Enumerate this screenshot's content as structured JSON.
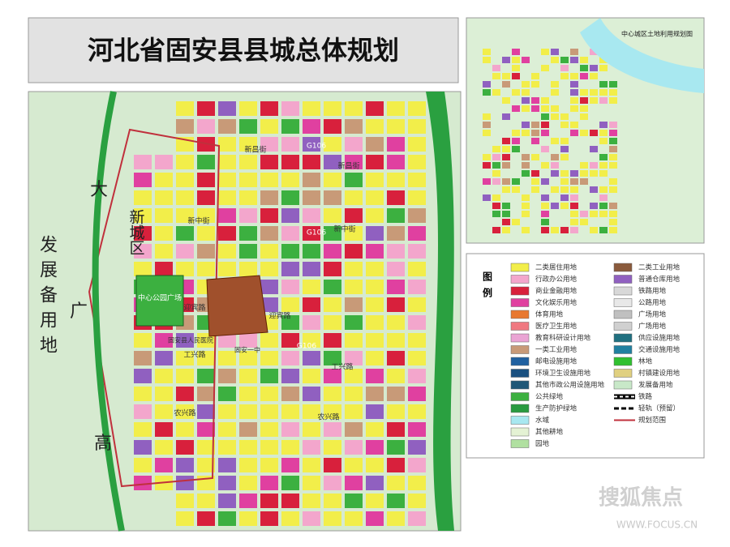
{
  "header": {
    "title": "河北省固安县县城总体规划"
  },
  "main_map": {
    "labels": [
      "新昌街",
      "新昌街",
      "G106",
      "新中街",
      "新中街",
      "G106",
      "新城区",
      "发展备用地",
      "大",
      "广",
      "高",
      "中心公园广场",
      "迎宾路",
      "迎宾路",
      "固安县人民医院",
      "固安一中",
      "G106",
      "工兴路",
      "工兴路",
      "农兴路",
      "农兴路"
    ]
  },
  "inset_map": {
    "title": "中心城区土地利用规划图"
  },
  "legend": {
    "title": "图例",
    "items": [
      {
        "label": "二类居住用地",
        "color": "#f2ee4a"
      },
      {
        "label": "行政办公用地",
        "color": "#f3a6cc"
      },
      {
        "label": "商业金融用地",
        "color": "#d8203c"
      },
      {
        "label": "文化娱乐用地",
        "color": "#e040a0"
      },
      {
        "label": "体育用地",
        "color": "#e87830"
      },
      {
        "label": "医疗卫生用地",
        "color": "#f07880"
      },
      {
        "label": "教育科研设计用地",
        "color": "#eaa4d4"
      },
      {
        "label": "一类工业用地",
        "color": "#c89a78"
      },
      {
        "label": "邮电设施用地",
        "color": "#2060a0"
      },
      {
        "label": "环境卫生设施用地",
        "color": "#1a5080"
      },
      {
        "label": "其他市政公用设施用地",
        "color": "#205878"
      },
      {
        "label": "公共绿地",
        "color": "#3cb040"
      },
      {
        "label": "生产防护绿地",
        "color": "#2a9a40"
      },
      {
        "label": "水域",
        "color": "#a8e8f0"
      },
      {
        "label": "其他耕地",
        "color": "#e4f2d4"
      },
      {
        "label": "园地",
        "color": "#b0e0a0"
      },
      {
        "label": "二类工业用地",
        "color": "#8a5a3c"
      },
      {
        "label": "普通仓库用地",
        "color": "#9060c0"
      },
      {
        "label": "铁路用地",
        "color": "#d8d8d8"
      },
      {
        "label": "公路用地",
        "color": "#e8e8e8"
      },
      {
        "label": "广场用地",
        "color": "#c0c0c0"
      },
      {
        "label": "广场用地",
        "color": "#d0d0d0"
      },
      {
        "label": "供应设施用地",
        "color": "#207080"
      },
      {
        "label": "交通设施用地",
        "color": "#2080a0"
      },
      {
        "label": "林地",
        "color": "#30c030"
      },
      {
        "label": "村镇建设用地",
        "color": "#e0d080"
      },
      {
        "label": "发展备用地",
        "color": "#c8e8c8"
      },
      {
        "label": "铁路",
        "color": "#000000",
        "style": "rail"
      },
      {
        "label": "轻轨（预留）",
        "color": "#000000",
        "style": "dashed"
      },
      {
        "label": "规划范围",
        "color": "#c0303c",
        "style": "line"
      }
    ]
  },
  "watermark": {
    "brand": "搜狐焦点",
    "url": "WWW.FOCUS.CN"
  }
}
